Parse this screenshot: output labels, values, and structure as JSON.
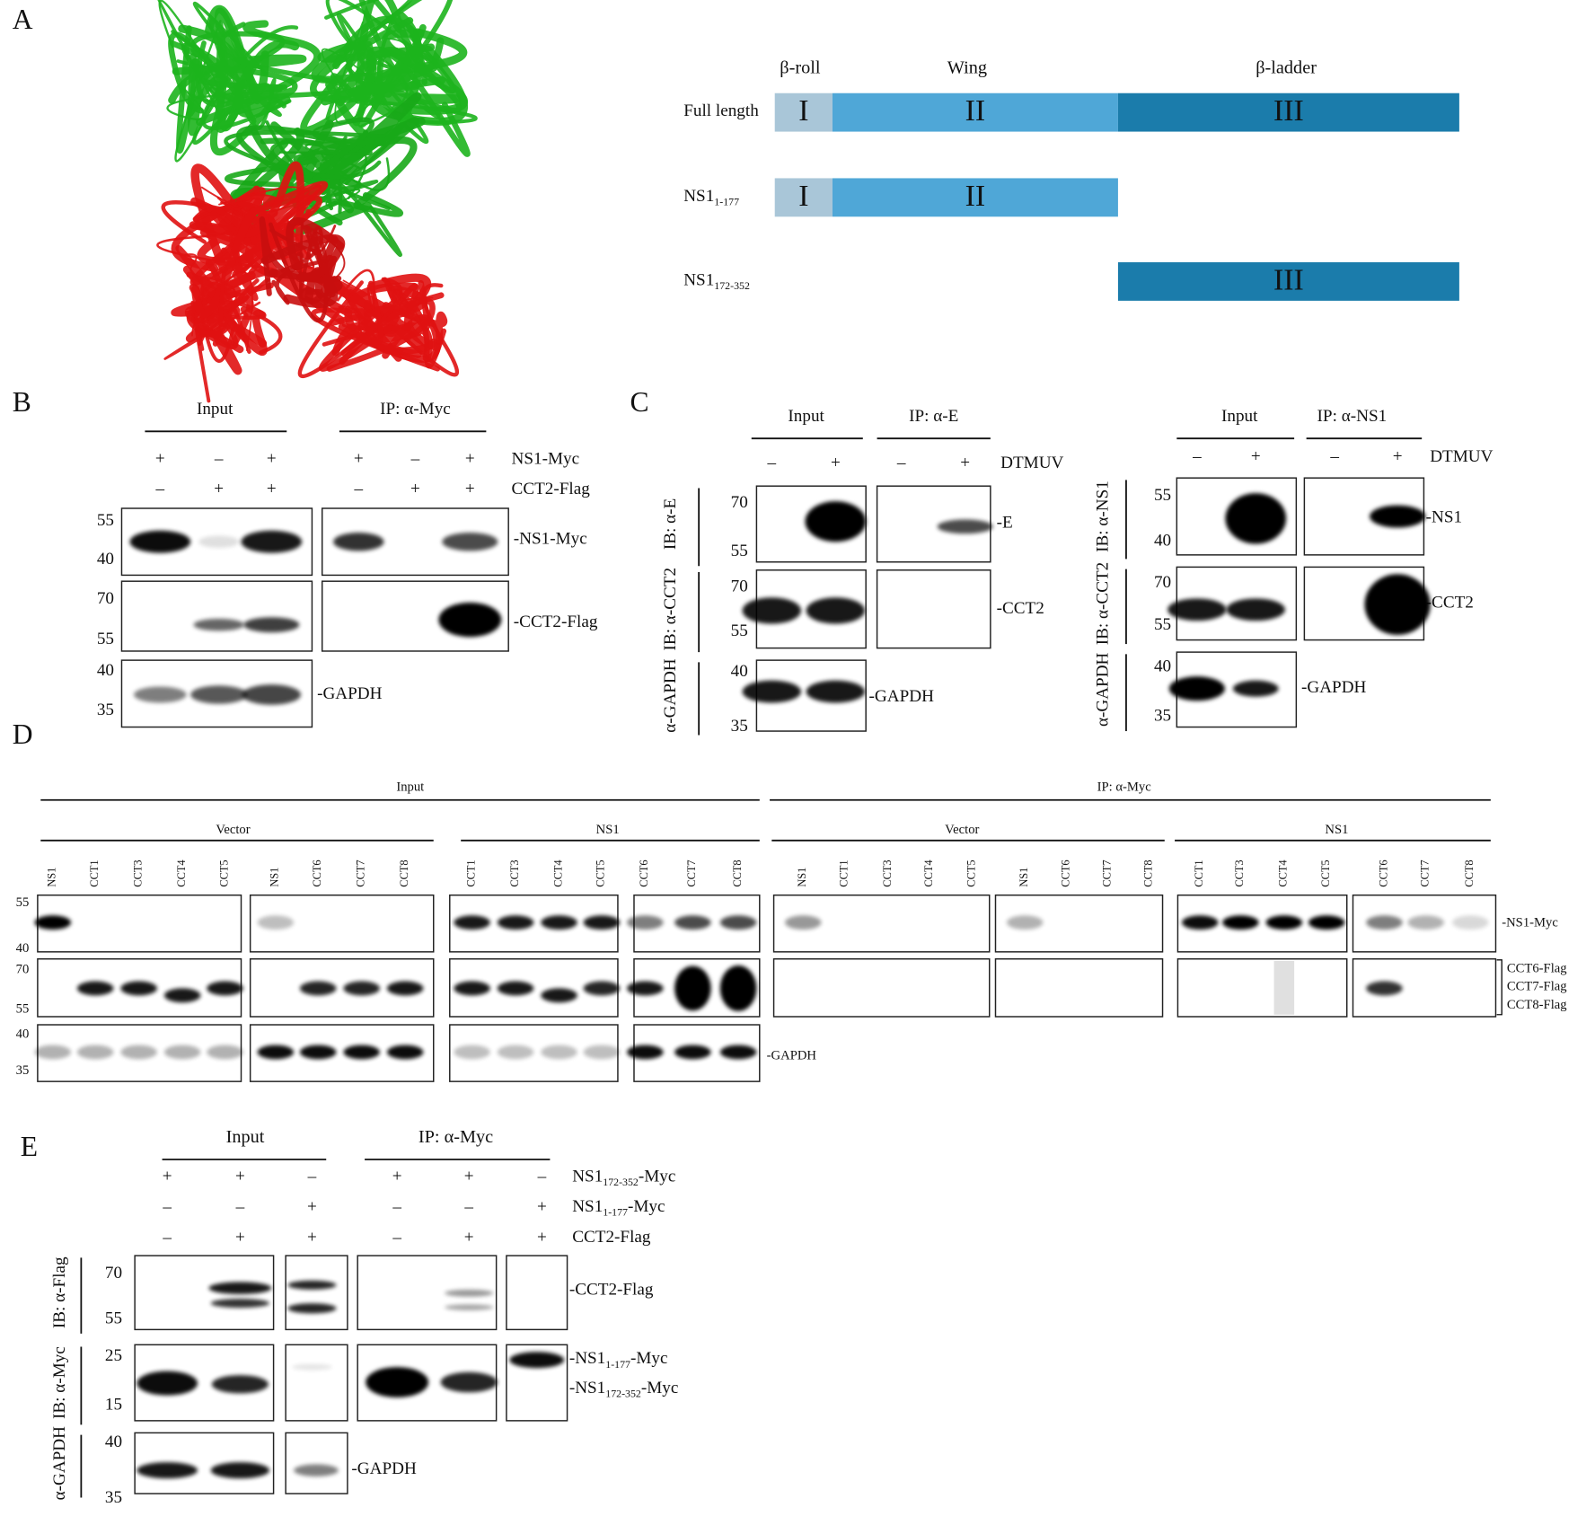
{
  "panel_a": {
    "label": "A",
    "domain_headers": [
      "β-roll",
      "Wing",
      "β-ladder"
    ],
    "constructs": [
      {
        "name": {
          "text": "Full length"
        },
        "domains": [
          "I",
          "II",
          "III"
        ]
      },
      {
        "name": {
          "text": "NS1",
          "sub": "1-177"
        },
        "domains": [
          "I",
          "II"
        ]
      },
      {
        "name": {
          "text": "NS1",
          "sub": "172-352"
        },
        "domains": [
          "III"
        ]
      }
    ]
  },
  "panel_b": {
    "label": "B",
    "groups": [
      "Input",
      "IP: α-Myc"
    ],
    "conditions": [
      {
        "name": "NS1-Myc",
        "signs": [
          "+",
          "–",
          "+",
          "+",
          "–",
          "+"
        ]
      },
      {
        "name": "CCT2-Flag",
        "signs": [
          "–",
          "+",
          "+",
          "–",
          "+",
          "+"
        ]
      }
    ],
    "blots": [
      {
        "markers": [
          55,
          40
        ],
        "band_label": "-NS1-Myc"
      },
      {
        "markers": [
          70,
          55
        ],
        "band_label": "-CCT2-Flag"
      },
      {
        "markers": [
          40,
          35
        ],
        "band_label": "-GAPDH"
      }
    ]
  },
  "panel_c": {
    "label": "C",
    "experiments": [
      {
        "groups": [
          "Input",
          "IP: α-E"
        ],
        "condition": "DTMUV",
        "signs": [
          "–",
          "+",
          "–",
          "+"
        ],
        "blots": [
          {
            "ib_label": "IB: α-E",
            "markers": [
              70,
              55
            ],
            "band_label": "-E"
          },
          {
            "ib_label": "IB: α-CCT2",
            "markers": [
              70,
              55
            ],
            "band_label": "-CCT2"
          },
          {
            "ib_label": "α-GAPDH",
            "markers": [
              40,
              35
            ],
            "band_label": "-GAPDH"
          }
        ]
      },
      {
        "groups": [
          "Input",
          "IP: α-NS1"
        ],
        "condition": "DTMUV",
        "signs": [
          "–",
          "+",
          "–",
          "+"
        ],
        "blots": [
          {
            "ib_label": "IB: α-NS1",
            "markers": [
              55,
              40
            ],
            "band_label": "-NS1"
          },
          {
            "ib_label": "IB: α-CCT2",
            "markers": [
              70,
              55
            ],
            "band_label": "-CCT2"
          },
          {
            "ib_label": "α-GAPDH",
            "markers": [
              40,
              35
            ],
            "band_label": "-GAPDH"
          }
        ]
      }
    ]
  },
  "panel_d": {
    "label": "D",
    "sections": [
      {
        "group": "Input",
        "subgroups": [
          {
            "name": "Vector",
            "lanes": [
              "NS1",
              "CCT1",
              "CCT3",
              "CCT4",
              "CCT5",
              "NS1",
              "CCT6",
              "CCT7",
              "CCT8"
            ]
          },
          {
            "name": "NS1",
            "lanes": [
              "CCT1",
              "CCT3",
              "CCT4",
              "CCT5",
              "CCT6",
              "CCT7",
              "CCT8"
            ]
          }
        ]
      },
      {
        "group": "IP: α-Myc",
        "subgroups": [
          {
            "name": "Vector",
            "lanes": [
              "NS1",
              "CCT1",
              "CCT3",
              "CCT4",
              "CCT5",
              "NS1",
              "CCT6",
              "CCT7",
              "CCT8"
            ]
          },
          {
            "name": "NS1",
            "lanes": [
              "CCT1",
              "CCT3",
              "CCT4",
              "CCT5",
              "CCT6",
              "CCT7",
              "CCT8"
            ]
          }
        ]
      }
    ],
    "markers": [
      [
        55,
        40
      ],
      [
        70,
        55
      ],
      [
        40,
        35
      ]
    ],
    "band_labels": {
      "myc": "-NS1-Myc",
      "flag": [
        "CCT6-Flag",
        "CCT7-Flag",
        "CCT8-Flag"
      ],
      "gapdh": "-GAPDH"
    }
  },
  "panel_e": {
    "label": "E",
    "groups": [
      "Input",
      "IP: α-Myc"
    ],
    "conditions": [
      {
        "name": {
          "text": "NS1",
          "sub": "172-352",
          "suffix": "-Myc"
        },
        "signs": [
          "+",
          "+",
          "–",
          "+",
          "+",
          "–"
        ]
      },
      {
        "name": {
          "text": "NS1",
          "sub": "1-177",
          "suffix": "-Myc"
        },
        "signs": [
          "–",
          "–",
          "+",
          "–",
          "–",
          "+"
        ]
      },
      {
        "name": {
          "text": "CCT2-Flag"
        },
        "signs": [
          "–",
          "+",
          "+",
          "–",
          "+",
          "+"
        ]
      }
    ],
    "blots": [
      {
        "ib_label": "IB: α-Flag",
        "markers": [
          70,
          55
        ],
        "band_labels": [
          {
            "text": "-CCT2-Flag"
          }
        ]
      },
      {
        "ib_label": "IB: α-Myc",
        "markers": [
          25,
          15
        ],
        "band_labels": [
          {
            "text": "-NS1",
            "sub": "1-177",
            "suffix": "-Myc"
          },
          {
            "text": "-NS1",
            "sub": "172-352",
            "suffix": "-Myc"
          }
        ]
      },
      {
        "ib_label": "α-GAPDH",
        "markers": [
          40,
          35
        ],
        "band_labels": [
          {
            "text": "-GAPDH"
          }
        ]
      }
    ]
  }
}
